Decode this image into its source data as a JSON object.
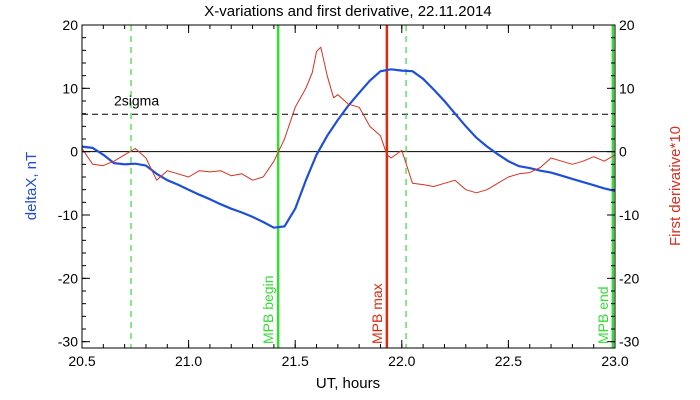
{
  "chart_data": {
    "type": "line",
    "title": "X-variations and first derivative, 22.11.2014",
    "xlabel": "UT, hours",
    "ylabel_left": "deltaX, nT",
    "ylabel_right": "First derivative*10",
    "xlim": [
      20.5,
      23.0
    ],
    "ylim": [
      -31,
      20
    ],
    "xticks": [
      20.5,
      21.0,
      21.5,
      22.0,
      22.5,
      23.0
    ],
    "xtick_labels": [
      "20.5",
      "21.0",
      "21.5",
      "22.0",
      "22.5",
      "23.0"
    ],
    "yticks": [
      20,
      10,
      0,
      -10,
      -20,
      -30
    ],
    "ytick_labels": [
      "20",
      "10",
      "0",
      "-10",
      "-20",
      "-30"
    ],
    "colors": {
      "deltaX": "#1f4fd8",
      "derivative": "#d93020",
      "mpb_boundary": "#33dd33",
      "mpb_max": "#dd2a10",
      "sigma_line": "#000000",
      "left_axis_title": "#1f4fd8",
      "right_axis_title": "#d93020"
    },
    "zero_line": 0,
    "sigma": {
      "label": "2sigma",
      "value": 5.9
    },
    "annotations": [
      {
        "label": "MPB begin",
        "x": 21.42,
        "style": "solid",
        "color": "#33dd33"
      },
      {
        "label": "MPB max",
        "x": 21.93,
        "style": "solid",
        "color": "#dd2a10"
      },
      {
        "label": "MPB end",
        "x": 22.99,
        "style": "solid",
        "color": "#33dd33"
      },
      {
        "label": "",
        "x": 20.73,
        "style": "dashed",
        "color": "#33dd33"
      },
      {
        "label": "",
        "x": 22.02,
        "style": "dashed",
        "color": "#33dd33"
      }
    ],
    "series": [
      {
        "key": "deltaX",
        "x": [
          20.5,
          20.55,
          20.6,
          20.65,
          20.7,
          20.75,
          20.8,
          20.85,
          20.9,
          20.95,
          21.0,
          21.05,
          21.1,
          21.15,
          21.2,
          21.25,
          21.3,
          21.35,
          21.4,
          21.45,
          21.5,
          21.55,
          21.6,
          21.65,
          21.7,
          21.75,
          21.8,
          21.85,
          21.9,
          21.95,
          22.0,
          22.05,
          22.1,
          22.15,
          22.2,
          22.25,
          22.3,
          22.35,
          22.4,
          22.45,
          22.5,
          22.55,
          22.6,
          22.65,
          22.7,
          22.75,
          22.8,
          22.85,
          22.9,
          22.95,
          23.0
        ],
        "values": [
          0.8,
          0.6,
          -0.5,
          -1.8,
          -2.0,
          -1.9,
          -2.2,
          -3.5,
          -4.5,
          -5.2,
          -6.0,
          -6.8,
          -7.5,
          -8.3,
          -9.0,
          -9.6,
          -10.3,
          -11.1,
          -12.0,
          -11.8,
          -9.0,
          -4.5,
          -0.5,
          2.5,
          5.0,
          7.3,
          9.3,
          11.2,
          12.7,
          13.0,
          12.8,
          12.7,
          11.5,
          9.8,
          8.0,
          6.0,
          4.0,
          2.2,
          0.8,
          -0.4,
          -1.5,
          -2.3,
          -2.6,
          -3.0,
          -3.3,
          -3.8,
          -4.3,
          -4.8,
          -5.3,
          -5.8,
          -6.2
        ]
      },
      {
        "key": "derivative",
        "x": [
          20.5,
          20.55,
          20.6,
          20.65,
          20.7,
          20.75,
          20.8,
          20.85,
          20.9,
          20.95,
          21.0,
          21.05,
          21.1,
          21.15,
          21.2,
          21.25,
          21.3,
          21.35,
          21.4,
          21.45,
          21.5,
          21.55,
          21.58,
          21.6,
          21.62,
          21.65,
          21.68,
          21.7,
          21.75,
          21.8,
          21.85,
          21.9,
          21.93,
          21.95,
          22.0,
          22.05,
          22.1,
          22.15,
          22.2,
          22.25,
          22.3,
          22.35,
          22.4,
          22.45,
          22.5,
          22.55,
          22.6,
          22.65,
          22.7,
          22.75,
          22.8,
          22.85,
          22.9,
          22.95,
          23.0
        ],
        "values": [
          0.5,
          -2.0,
          -2.2,
          -1.5,
          -0.5,
          0.5,
          -1.0,
          -4.5,
          -3.0,
          -3.5,
          -4.0,
          -3.0,
          -3.2,
          -3.0,
          -3.8,
          -3.5,
          -4.5,
          -4.0,
          -1.5,
          2.0,
          7.0,
          10.0,
          12.5,
          15.8,
          16.5,
          12.0,
          8.5,
          9.0,
          7.5,
          7.0,
          4.0,
          2.5,
          -0.5,
          -1.0,
          0.2,
          -5.0,
          -5.2,
          -5.5,
          -5.0,
          -4.5,
          -6.0,
          -6.5,
          -6.0,
          -5.0,
          -4.0,
          -3.5,
          -3.3,
          -2.5,
          -1.0,
          -1.5,
          -2.0,
          -1.5,
          -0.8,
          -1.5,
          -0.5
        ]
      }
    ]
  }
}
